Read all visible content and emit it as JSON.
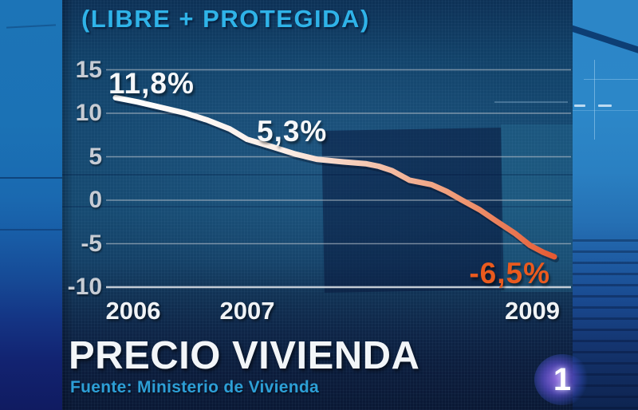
{
  "header": {
    "chart_title": "(LIBRE + PROTEGIDA)"
  },
  "value_labels": {
    "start": "11,8%",
    "mid": "5,3%",
    "end": "-6,5%"
  },
  "footer": {
    "heading": "PRECIO VIVIENDA",
    "source": "Fuente: Ministerio de Vivienda"
  },
  "channel": {
    "logo_number": "1"
  },
  "colors": {
    "title_cyan": "#2fb3e8",
    "source_cyan": "#2d9fd6",
    "annotation_orange": "#ea5a1e",
    "axis_text": "#c7ccd4",
    "grid_line": "#b6bfc9",
    "line_gradient": [
      [
        0,
        "#ffffff"
      ],
      [
        0.38,
        "#fcefe8"
      ],
      [
        0.58,
        "#f5c6b0"
      ],
      [
        0.78,
        "#ef9a76"
      ],
      [
        0.92,
        "#e9734e"
      ],
      [
        1,
        "#e65a32"
      ]
    ]
  },
  "chart_data": {
    "type": "line",
    "title": "(LIBRE + PROTEGIDA)",
    "ylim": [
      -10,
      15
    ],
    "yticks": [
      15,
      10,
      5,
      0,
      -5,
      -10
    ],
    "grid": true,
    "x_axis": {
      "labels": [
        "2006",
        "2007",
        "2009"
      ],
      "positions": [
        0.04,
        0.3,
        0.95
      ]
    },
    "series": [
      {
        "name": "Precio vivienda (libre + protegida), variacion %",
        "x": [
          0,
          0.05,
          0.11,
          0.16,
          0.21,
          0.26,
          0.3,
          0.36,
          0.41,
          0.46,
          0.52,
          0.57,
          0.6,
          0.63,
          0.67,
          0.72,
          0.755,
          0.79,
          0.83,
          0.865,
          0.91,
          0.945,
          0.975,
          1.0
        ],
        "values": [
          11.8,
          11.3,
          10.6,
          10.0,
          9.2,
          8.2,
          7.0,
          6.1,
          5.3,
          4.7,
          4.4,
          4.2,
          3.9,
          3.4,
          2.3,
          1.8,
          1.0,
          0.0,
          -1.1,
          -2.3,
          -3.8,
          -5.2,
          -6.0,
          -6.5
        ]
      }
    ],
    "annotations": [
      {
        "text": "11,8%",
        "x": 0.0,
        "value": 11.8
      },
      {
        "text": "5,3%",
        "x": 0.41,
        "value": 5.3
      },
      {
        "text": "-6,5%",
        "x": 1.0,
        "value": -6.5
      }
    ]
  }
}
